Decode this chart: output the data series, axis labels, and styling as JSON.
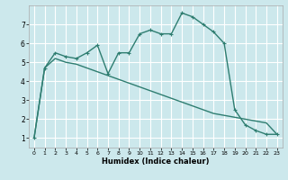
{
  "xlabel": "Humidex (Indice chaleur)",
  "bg_color": "#cce8ec",
  "grid_color": "#ffffff",
  "line_color": "#2e7d70",
  "curve1_x": [
    0,
    1,
    2,
    3,
    4,
    5,
    6,
    7,
    8,
    9,
    10,
    11,
    12,
    13,
    14,
    15,
    16,
    17,
    18,
    19,
    20,
    21,
    22,
    23
  ],
  "curve1_y": [
    1.0,
    4.7,
    5.5,
    5.3,
    5.2,
    5.5,
    5.9,
    4.4,
    5.5,
    5.5,
    6.5,
    6.7,
    6.5,
    6.5,
    7.6,
    7.4,
    7.0,
    6.6,
    6.0,
    2.5,
    1.7,
    1.4,
    1.2,
    1.2
  ],
  "curve2_x": [
    0,
    1,
    2,
    3,
    4,
    5,
    6,
    7,
    8,
    9,
    10,
    11,
    12,
    13,
    14,
    15,
    16,
    17,
    18,
    19,
    20,
    21,
    22,
    23
  ],
  "curve2_y": [
    1.0,
    4.7,
    5.2,
    5.0,
    4.9,
    4.7,
    4.5,
    4.3,
    4.1,
    3.9,
    3.7,
    3.5,
    3.3,
    3.1,
    2.9,
    2.7,
    2.5,
    2.3,
    2.2,
    2.1,
    2.0,
    1.9,
    1.8,
    1.2
  ],
  "xlim": [
    -0.5,
    23.5
  ],
  "ylim": [
    0.5,
    8.0
  ],
  "yticks": [
    1,
    2,
    3,
    4,
    5,
    6,
    7
  ],
  "xticks": [
    0,
    1,
    2,
    3,
    4,
    5,
    6,
    7,
    8,
    9,
    10,
    11,
    12,
    13,
    14,
    15,
    16,
    17,
    18,
    19,
    20,
    21,
    22,
    23
  ]
}
